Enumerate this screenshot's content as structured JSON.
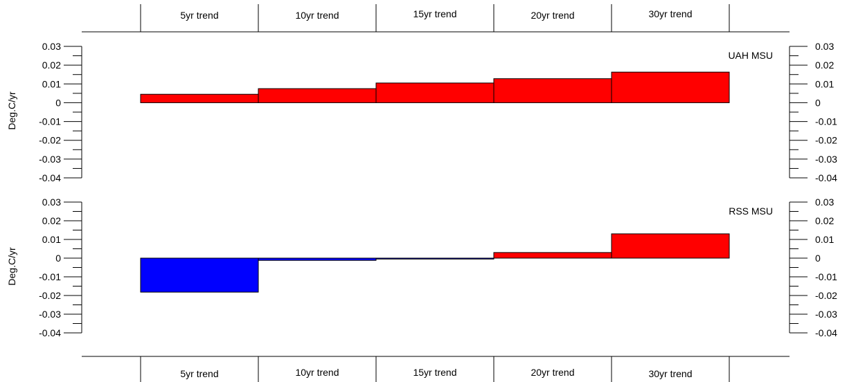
{
  "chart_data": {
    "type": "bar",
    "categories": [
      "5yr trend",
      "10yr trend",
      "15yr trend",
      "20yr trend",
      "30yr trend"
    ],
    "ylabel": "Deg.C/yr",
    "ylim": [
      -0.04,
      0.03
    ],
    "ticks": [
      "0.03",
      "0.02",
      "0.01",
      "0",
      "-0.01",
      "-0.02",
      "-0.03",
      "-0.04"
    ],
    "grid": false,
    "colors": {
      "positive": "#ff0000",
      "negative": "#0000ff",
      "stroke": "#000000"
    },
    "panels": [
      {
        "label": "UAH MSU",
        "values": [
          0.0045,
          0.0075,
          0.0105,
          0.0128,
          0.0163
        ]
      },
      {
        "label": "RSS MSU",
        "values": [
          -0.0182,
          -0.0012,
          -0.0005,
          0.003,
          0.013
        ]
      }
    ]
  }
}
